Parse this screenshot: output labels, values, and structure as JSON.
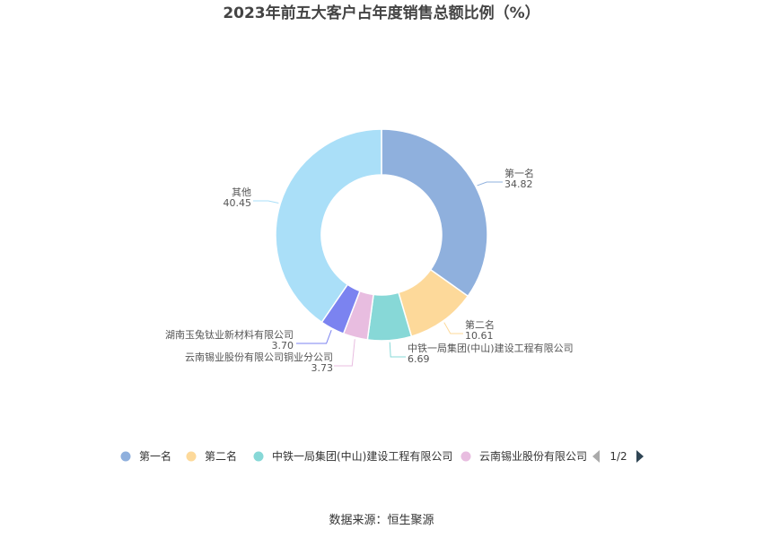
{
  "chart_data": {
    "type": "pie",
    "variant": "donut",
    "title": "2023年前五大客户占年度销售总额比例（%）",
    "slices": [
      {
        "name": "第一名",
        "value": 34.82,
        "label": "34.82",
        "color": "#8fb0dd"
      },
      {
        "name": "第二名",
        "value": 10.61,
        "label": "10.61",
        "color": "#fdd99a"
      },
      {
        "name": "中铁一局集团(中山)建设工程有限公司",
        "value": 6.69,
        "label": "6.69",
        "color": "#87d8d7"
      },
      {
        "name": "云南锡业股份有限公司铜业分公司",
        "value": 3.73,
        "label": "3.73",
        "color": "#e8bde0"
      },
      {
        "name": "湖南玉兔钛业新材料有限公司",
        "value": 3.7,
        "label": "3.70",
        "color": "#7b83f0"
      },
      {
        "name": "其他",
        "value": 40.45,
        "label": "40.45",
        "color": "#aadff8"
      }
    ],
    "legend": {
      "placement": "bottom",
      "items": [
        "第一名",
        "第二名",
        "中铁一局集团(中山)建设工程有限公司",
        "云南锡业股份有限公司"
      ],
      "page": "1/2"
    }
  },
  "source": "数据来源：恒生聚源"
}
